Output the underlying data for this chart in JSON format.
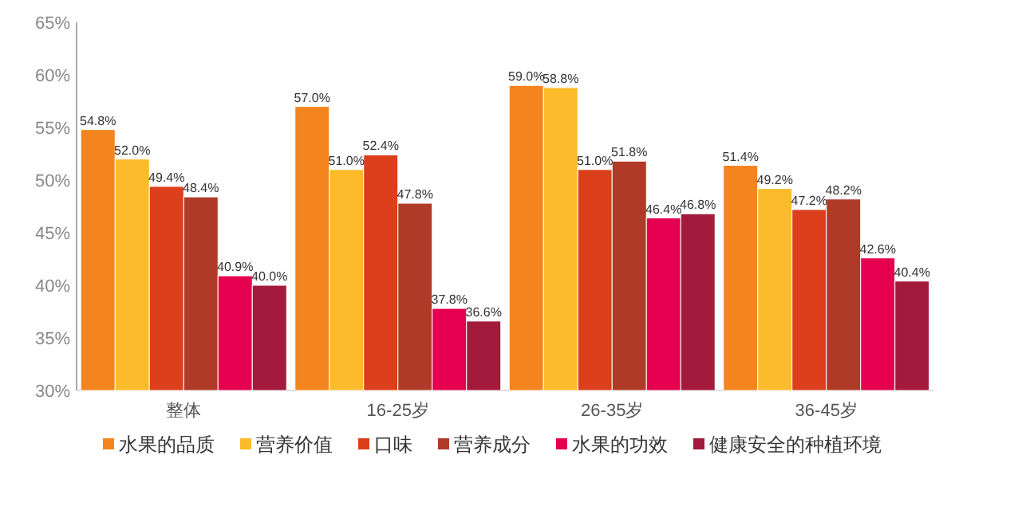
{
  "chart_data": {
    "type": "bar",
    "categories": [
      "整体",
      "16-25岁",
      "26-35岁",
      "36-45岁"
    ],
    "series": [
      {
        "name": "水果的品质",
        "color": "#f3841e",
        "values": [
          54.8,
          57.0,
          59.0,
          51.4
        ],
        "value_labels": [
          "54.8%",
          "57.0%",
          "59.0%",
          "51.4%"
        ]
      },
      {
        "name": "营养价值",
        "color": "#fbbb2a",
        "values": [
          52.0,
          51.0,
          58.8,
          49.2
        ],
        "value_labels": [
          "52.0%",
          "51.0%",
          "58.8%",
          "49.2%"
        ]
      },
      {
        "name": "口味",
        "color": "#dd3e1b",
        "values": [
          49.4,
          52.4,
          51.0,
          47.2
        ],
        "value_labels": [
          "49.4%",
          "52.4%",
          "51.0%",
          "47.2%"
        ]
      },
      {
        "name": "营养成分",
        "color": "#b03a28",
        "values": [
          48.4,
          47.8,
          51.8,
          48.2
        ],
        "value_labels": [
          "48.4%",
          "47.8%",
          "51.8%",
          "48.2%"
        ]
      },
      {
        "name": "水果的功效",
        "color": "#e5004f",
        "values": [
          40.9,
          37.8,
          46.4,
          42.6
        ],
        "value_labels": [
          "40.9%",
          "37.8%",
          "46.4%",
          "42.6%"
        ]
      },
      {
        "name": "健康安全的种植环境",
        "color": "#a31b3c",
        "values": [
          40.0,
          36.6,
          46.8,
          40.4
        ],
        "value_labels": [
          "40.0%",
          "36.6%",
          "46.8%",
          "40.4%"
        ]
      }
    ],
    "ylim": [
      30,
      65
    ],
    "yticks": [
      {
        "value": 30,
        "label": "30%"
      },
      {
        "value": 35,
        "label": "35%"
      },
      {
        "value": 40,
        "label": "40%"
      },
      {
        "value": 45,
        "label": "45%"
      },
      {
        "value": 50,
        "label": "50%"
      },
      {
        "value": 55,
        "label": "55%"
      },
      {
        "value": 60,
        "label": "60%"
      },
      {
        "value": 65,
        "label": "65%"
      }
    ],
    "legend": "bottom"
  }
}
